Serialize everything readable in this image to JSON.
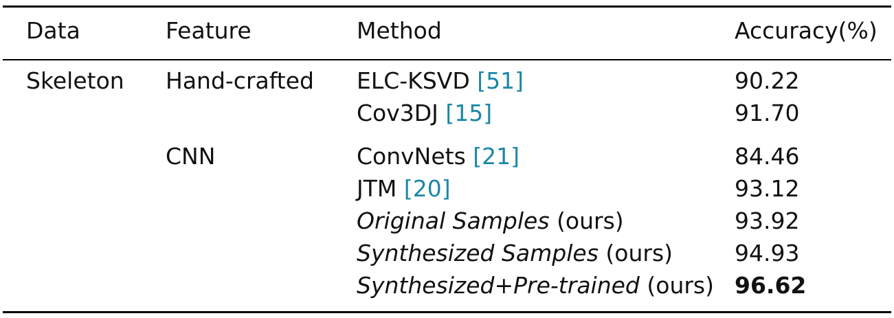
{
  "header": {
    "data": "Data",
    "feature": "Feature",
    "method": "Method",
    "accuracy": "Accuracy(%)"
  },
  "groups": [
    {
      "data": "Skeleton",
      "feature": "Hand-crafted",
      "rows": [
        {
          "method": "ELC-KSVD",
          "ref": "[51]",
          "accuracy": "90.22"
        },
        {
          "method": "Cov3DJ",
          "ref": "[15]",
          "accuracy": "91.70"
        }
      ]
    },
    {
      "data": "",
      "feature": "CNN",
      "rows": [
        {
          "method": "ConvNets",
          "ref": "[21]",
          "accuracy": "84.46"
        },
        {
          "method": "JTM",
          "ref": "[20]",
          "accuracy": "93.12"
        },
        {
          "method": "Original Samples",
          "suffix": "(ours)",
          "accuracy": "93.92"
        },
        {
          "method": "Synthesized Samples",
          "suffix": "(ours)",
          "accuracy": "94.93"
        },
        {
          "method": "Synthesized+Pre-trained",
          "suffix": "(ours)",
          "accuracy": "96.62",
          "best": true
        }
      ]
    }
  ]
}
